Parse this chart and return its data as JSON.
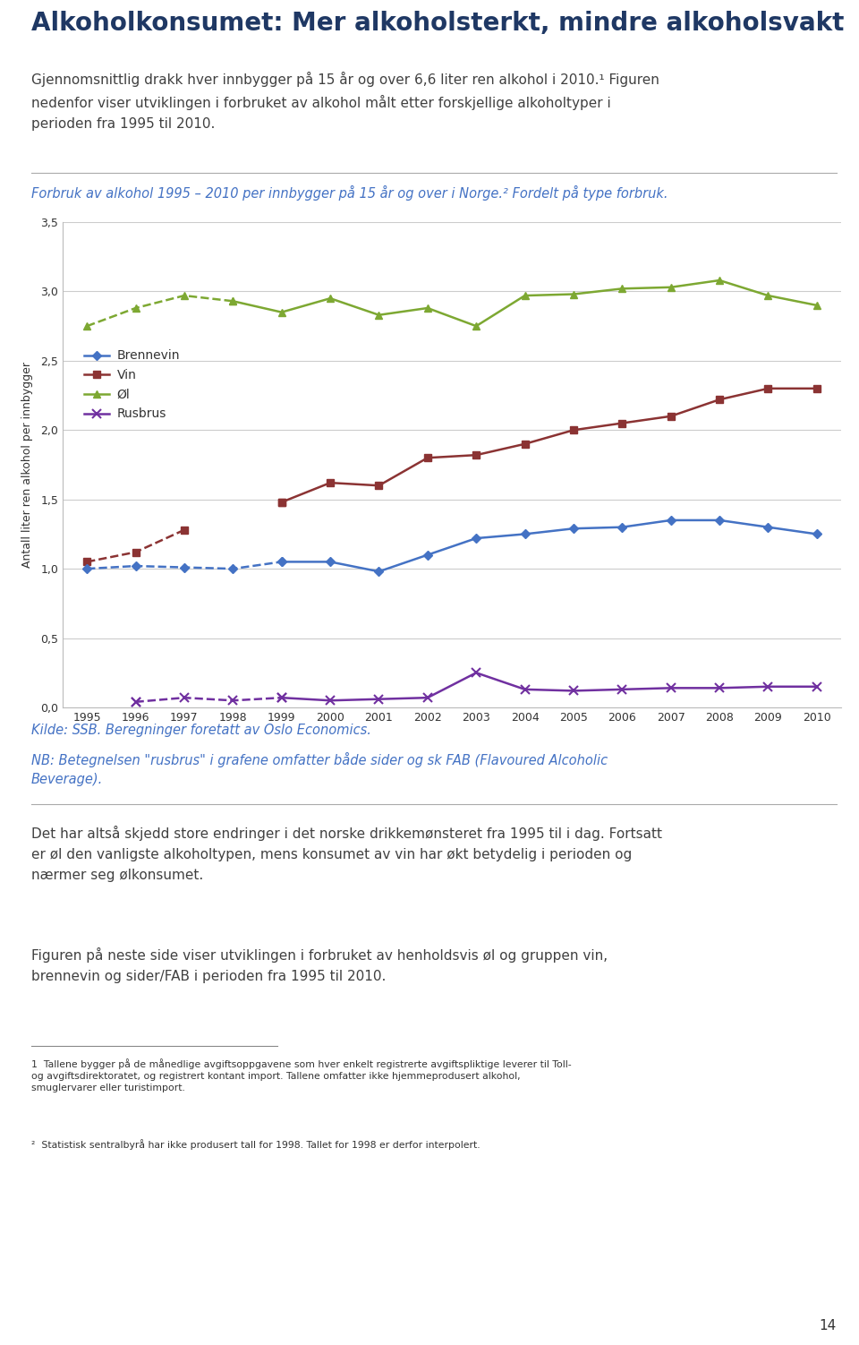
{
  "years": [
    1995,
    1996,
    1997,
    1998,
    1999,
    2000,
    2001,
    2002,
    2003,
    2004,
    2005,
    2006,
    2007,
    2008,
    2009,
    2010
  ],
  "brennevin": [
    1.0,
    1.02,
    1.01,
    1.0,
    1.05,
    1.05,
    0.98,
    1.1,
    1.22,
    1.25,
    1.29,
    1.3,
    1.35,
    1.35,
    1.3,
    1.25
  ],
  "vin": [
    1.05,
    1.12,
    1.28,
    null,
    1.48,
    1.62,
    1.6,
    1.8,
    1.82,
    1.9,
    2.0,
    2.05,
    2.1,
    2.22,
    2.3,
    2.3
  ],
  "oel": [
    2.75,
    2.88,
    2.97,
    2.93,
    2.85,
    2.95,
    2.83,
    2.88,
    2.75,
    2.97,
    2.98,
    3.02,
    3.03,
    3.08,
    2.97,
    2.9
  ],
  "rusbrus": [
    null,
    0.04,
    0.07,
    0.05,
    0.07,
    0.05,
    0.06,
    0.07,
    0.25,
    0.13,
    0.12,
    0.13,
    0.14,
    0.14,
    0.15,
    0.15
  ],
  "title_main": "Alkoholkonsumet: Mer alkoholsterkt, mindre alkoholsvakt",
  "ylabel": "Antall liter ren alkohol per innbygger",
  "kilde": "Kilde: SSB. Beregninger foretatt av Oslo Economics.",
  "nb_text": "NB: Betegnelsen \"rusbrus\" i grafene omfatter både sider og sk FAB (Flavoured Alcoholic\nBeverage).",
  "page_num": "14",
  "color_brennevin": "#4472C4",
  "color_vin": "#8B3333",
  "color_oel": "#7DA832",
  "color_rusbrus": "#7030A0",
  "color_caption": "#4472C4",
  "color_title": "#1F3864",
  "color_kilde": "#4472C4",
  "color_nb": "#4472C4",
  "color_body": "#404040",
  "color_footnote": "#333333",
  "ylim": [
    0.0,
    3.5
  ],
  "yticks": [
    0.0,
    0.5,
    1.0,
    1.5,
    2.0,
    2.5,
    3.0,
    3.5
  ]
}
